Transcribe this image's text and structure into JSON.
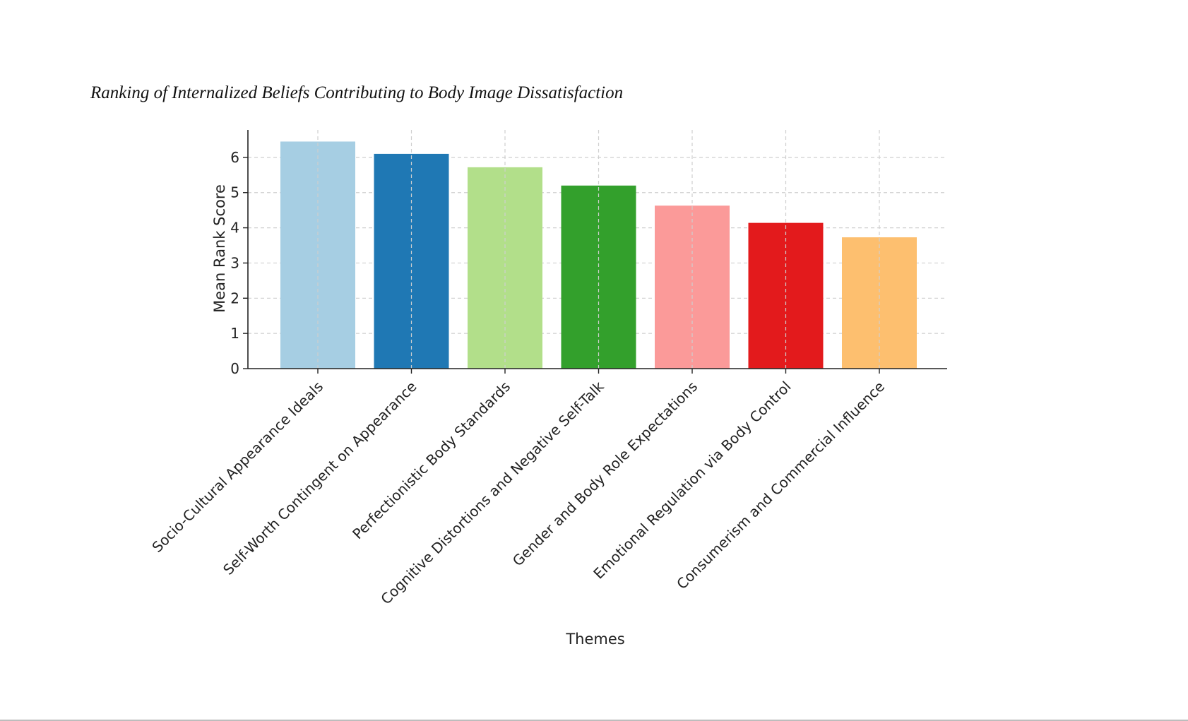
{
  "chart_data": {
    "type": "bar",
    "title": "Ranking of Internalized Beliefs Contributing to Body Image Dissatisfaction",
    "xlabel": "Themes",
    "ylabel": "Mean Rank Score",
    "categories": [
      "Socio-Cultural Appearance Ideals",
      "Self-Worth Contingent on Appearance",
      "Perfectionistic Body Standards",
      "Cognitive Distortions and Negative Self-Talk",
      "Gender and Body Role Expectations",
      "Emotional Regulation via Body Control",
      "Consumerism and Commercial Influence"
    ],
    "values": [
      6.45,
      6.1,
      5.72,
      5.2,
      4.63,
      4.14,
      3.73
    ],
    "colors": [
      "#a6cee3",
      "#1f78b4",
      "#b2df8a",
      "#33a02c",
      "#fb9a99",
      "#e31a1c",
      "#fdbf6f"
    ],
    "ylim": [
      0,
      6.78
    ],
    "yticks": [
      "0",
      "1",
      "2",
      "3",
      "4",
      "5",
      "6"
    ],
    "grid": true,
    "legend": "none"
  }
}
